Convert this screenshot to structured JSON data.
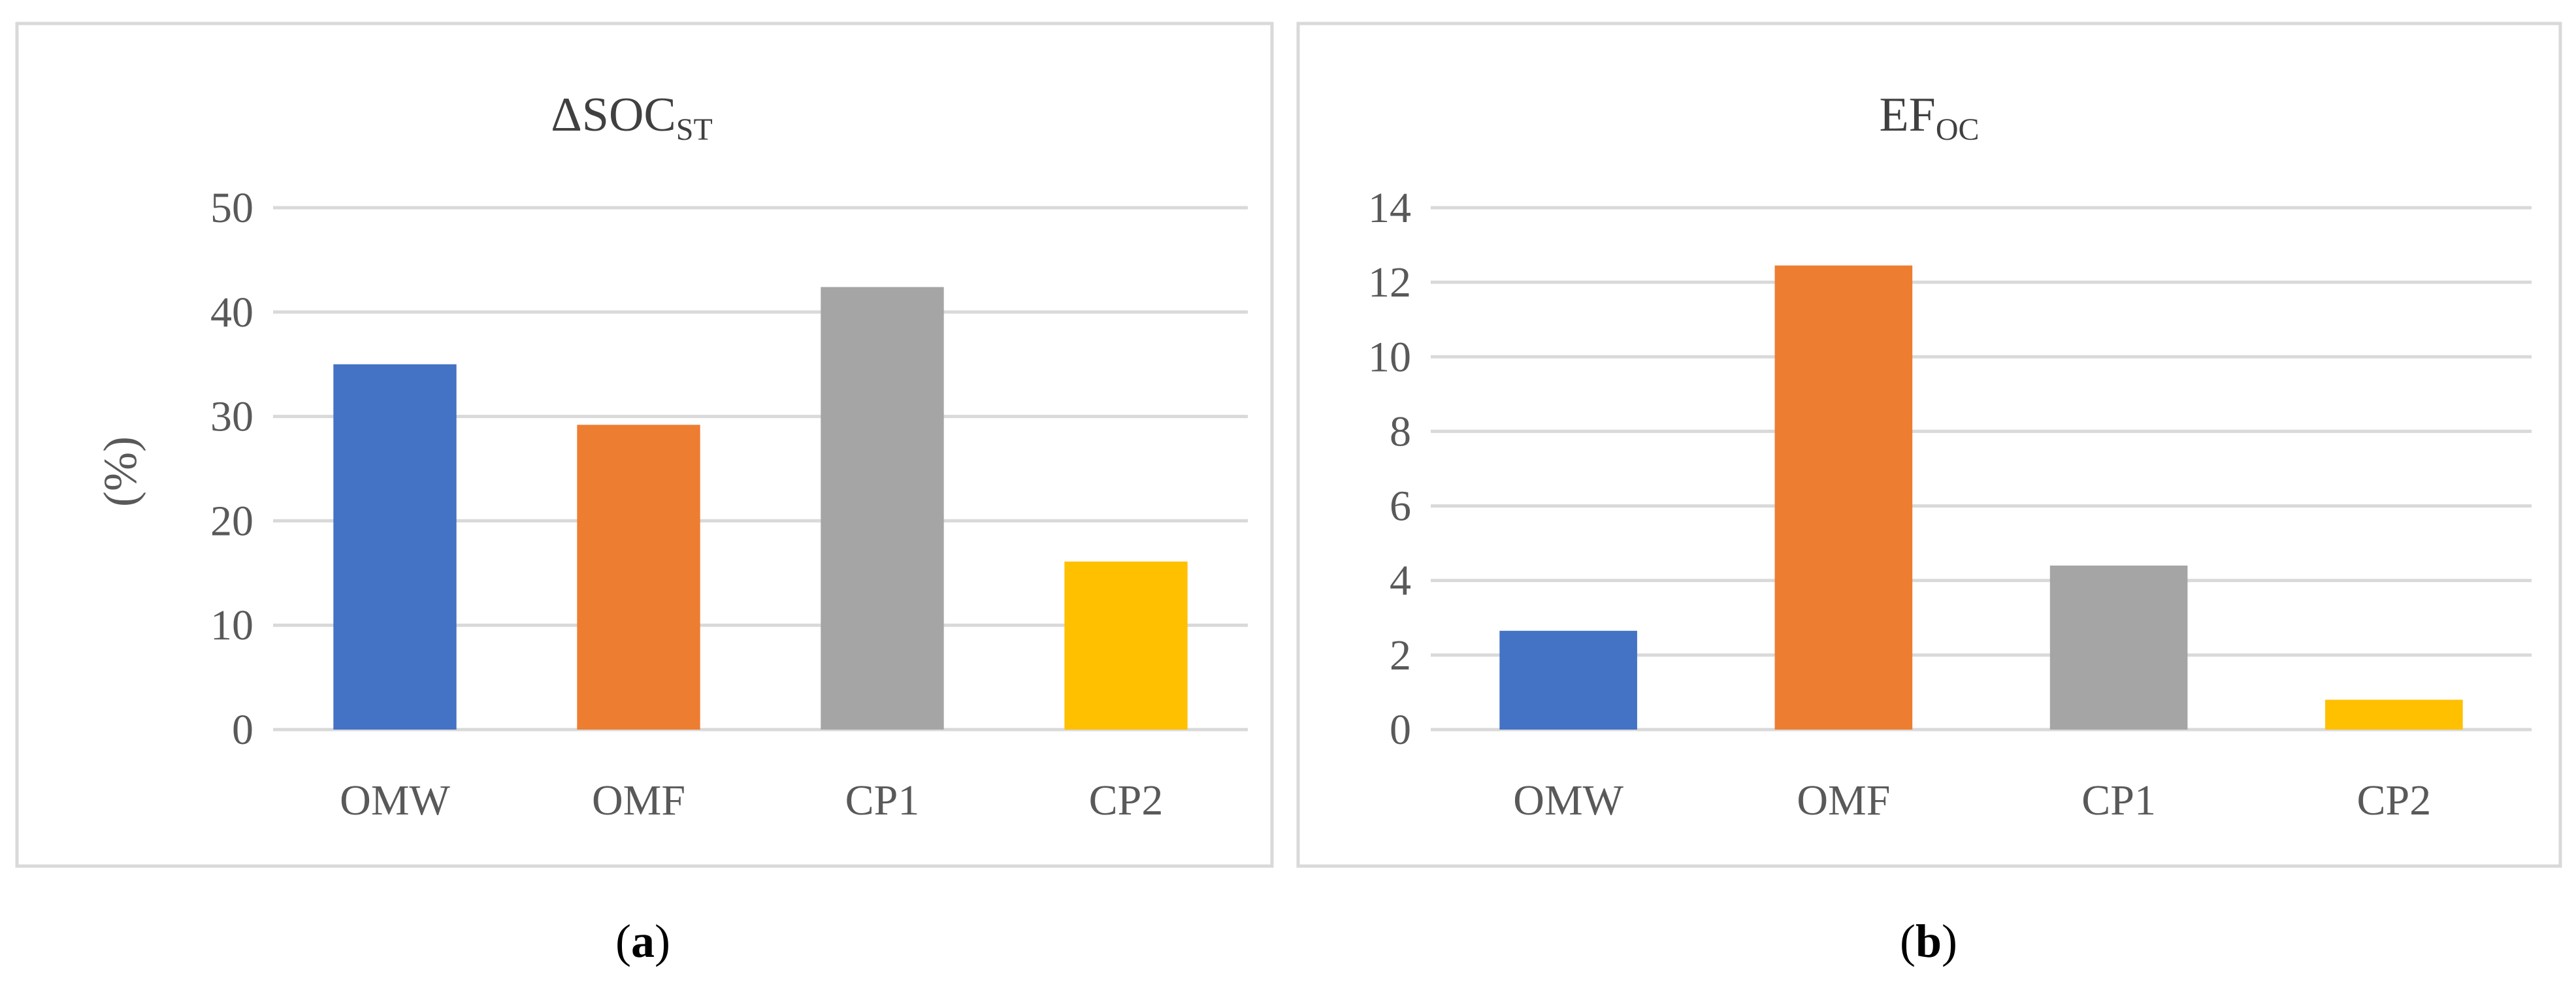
{
  "chart_data": [
    {
      "type": "bar",
      "panel": "a",
      "title": "ΔSOC",
      "title_sub": "ST",
      "ylabel": "(%)",
      "xlabel": "",
      "categories": [
        "OMW",
        "OMF",
        "CP1",
        "CP2"
      ],
      "values": [
        35,
        29.2,
        42.4,
        16.1
      ],
      "colors": [
        "#4472C4",
        "#ED7D31",
        "#A5A5A5",
        "#FFC000"
      ],
      "ylim": [
        0,
        50
      ],
      "yticks": [
        "0",
        "10",
        "20",
        "30",
        "40",
        "50"
      ],
      "grid": true
    },
    {
      "type": "bar",
      "panel": "b",
      "title": "EF",
      "title_sub": "OC",
      "ylabel": "",
      "xlabel": "",
      "categories": [
        "OMW",
        "OMF",
        "CP1",
        "CP2"
      ],
      "values": [
        2.65,
        12.45,
        4.4,
        0.8
      ],
      "colors": [
        "#4472C4",
        "#ED7D31",
        "#A5A5A5",
        "#FFC000"
      ],
      "ylim": [
        0,
        14
      ],
      "yticks": [
        "0",
        "2",
        "4",
        "6",
        "8",
        "10",
        "12",
        "14"
      ],
      "grid": true
    }
  ],
  "panel_labels": {
    "a": {
      "open": "(",
      "letter": "a",
      "close": ")"
    },
    "b": {
      "open": "(",
      "letter": "b",
      "close": ")"
    }
  }
}
